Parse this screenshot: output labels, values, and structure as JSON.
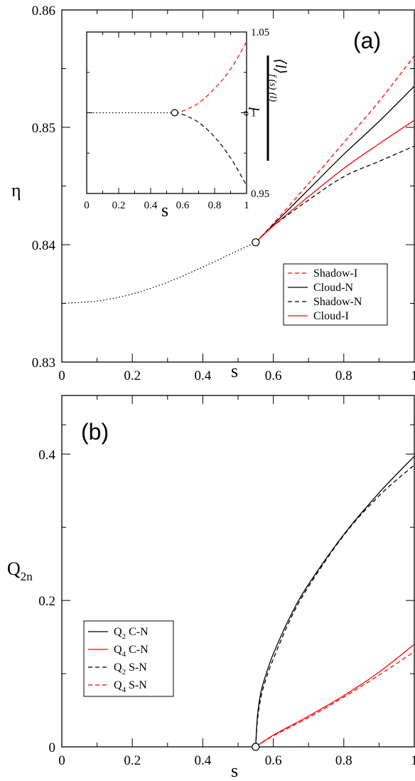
{
  "chart_data": [
    {
      "panel": "(a)",
      "type": "line",
      "xlabel": "s",
      "ylabel": "η",
      "xlim": [
        0,
        1
      ],
      "ylim": [
        0.83,
        0.86
      ],
      "xticks": [
        "0",
        "0.2",
        "0.4",
        "0.6",
        "0.8",
        "1"
      ],
      "yticks": [
        "0.83",
        "0.84",
        "0.85",
        "0.86"
      ],
      "legend_position": "right",
      "marker": {
        "x": 0.55,
        "y": 0.8402
      },
      "series": [
        {
          "name": "",
          "color": "#000000",
          "dash": "dotted",
          "x": [
            0,
            0.1,
            0.2,
            0.3,
            0.4,
            0.5,
            0.55
          ],
          "y": [
            0.835,
            0.8352,
            0.8358,
            0.8368,
            0.8381,
            0.8395,
            0.8402
          ]
        },
        {
          "name": "Shadow-I",
          "color": "#ff0000",
          "dash": "dashed",
          "x": [
            0.55,
            0.6,
            0.7,
            0.8,
            0.9,
            1.0
          ],
          "y": [
            0.8402,
            0.8418,
            0.8452,
            0.8487,
            0.8522,
            0.8561
          ]
        },
        {
          "name": "Cloud-N",
          "color": "#000000",
          "dash": "solid",
          "x": [
            0.55,
            0.6,
            0.7,
            0.8,
            0.9,
            1.0
          ],
          "y": [
            0.8402,
            0.8417,
            0.8447,
            0.8477,
            0.8505,
            0.8535
          ]
        },
        {
          "name": "Shadow-N",
          "color": "#000000",
          "dash": "dashed",
          "x": [
            0.55,
            0.6,
            0.7,
            0.8,
            0.9,
            1.0
          ],
          "y": [
            0.8402,
            0.8416,
            0.8438,
            0.8458,
            0.8471,
            0.8484
          ]
        },
        {
          "name": "Cloud-I",
          "color": "#ff0000",
          "dash": "solid",
          "x": [
            0.55,
            0.6,
            0.7,
            0.8,
            0.9,
            1.0
          ],
          "y": [
            0.8402,
            0.8416,
            0.8441,
            0.8465,
            0.8486,
            0.8506
          ]
        }
      ],
      "inset": {
        "type": "line",
        "xlabel": "s",
        "ylabel_prefix": "⟨l⟩",
        "ylabel_subscript": "f (s) (l)",
        "ylabel_denominator": "l",
        "ylabel_denominator_sub": "o",
        "xlim": [
          0,
          1
        ],
        "ylim": [
          0.95,
          1.05
        ],
        "xticks": [
          "0",
          "0.2",
          "0.4",
          "0.6",
          "0.8",
          "1"
        ],
        "yticks": [
          "0.95",
          "1",
          "1.05"
        ],
        "marker": {
          "x": 0.55,
          "y": 1.0
        },
        "series": [
          {
            "name": "",
            "color": "#000000",
            "dash": "dotted",
            "x": [
              0,
              0.55
            ],
            "y": [
              1.0,
              1.0
            ]
          },
          {
            "name": "",
            "color": "#ff0000",
            "dash": "dashed",
            "x": [
              0.55,
              0.6,
              0.7,
              0.8,
              0.9,
              1.0
            ],
            "y": [
              1.0,
              1.001,
              1.006,
              1.015,
              1.027,
              1.044
            ]
          },
          {
            "name": "",
            "color": "#000000",
            "dash": "dashed",
            "x": [
              0.55,
              0.6,
              0.7,
              0.8,
              0.9,
              1.0
            ],
            "y": [
              1.0,
              0.999,
              0.994,
              0.985,
              0.972,
              0.955
            ]
          }
        ]
      }
    },
    {
      "panel": "(b)",
      "type": "line",
      "xlabel": "s",
      "ylabel": "Q",
      "ylabel_sub": "2n",
      "xlim": [
        0,
        1
      ],
      "ylim": [
        0,
        0.48
      ],
      "xticks": [
        "0",
        "0.2",
        "0.4",
        "0.6",
        "0.8",
        "1"
      ],
      "yticks": [
        "0",
        "0.2",
        "0.4"
      ],
      "legend_position": "bottom-left",
      "marker": {
        "x": 0.55,
        "y": 0
      },
      "series": [
        {
          "name": "Q",
          "sub": "2",
          "suffix": " C-N",
          "color": "#000000",
          "dash": "solid",
          "x": [
            0.55,
            0.555,
            0.565,
            0.58,
            0.6,
            0.65,
            0.7,
            0.8,
            0.9,
            1.0
          ],
          "y": [
            0,
            0.042,
            0.075,
            0.1,
            0.127,
            0.18,
            0.222,
            0.29,
            0.347,
            0.397
          ]
        },
        {
          "name": "Q",
          "sub": "4",
          "suffix": " C-N",
          "color": "#ff0000",
          "dash": "solid",
          "x": [
            0.55,
            0.6,
            0.7,
            0.8,
            0.9,
            1.0
          ],
          "y": [
            0,
            0.016,
            0.042,
            0.07,
            0.102,
            0.14
          ]
        },
        {
          "name": "Q",
          "sub": "2",
          "suffix": " S-N",
          "color": "#000000",
          "dash": "dashed",
          "x": [
            0.55,
            0.555,
            0.565,
            0.58,
            0.6,
            0.65,
            0.7,
            0.8,
            0.9,
            1.0
          ],
          "y": [
            0,
            0.036,
            0.068,
            0.094,
            0.12,
            0.176,
            0.219,
            0.289,
            0.343,
            0.385
          ]
        },
        {
          "name": "Q",
          "sub": "4",
          "suffix": " S-N",
          "color": "#ff0000",
          "dash": "dashed",
          "x": [
            0.55,
            0.6,
            0.7,
            0.8,
            0.9,
            1.0
          ],
          "y": [
            0,
            0.015,
            0.04,
            0.068,
            0.098,
            0.13
          ]
        }
      ]
    }
  ]
}
